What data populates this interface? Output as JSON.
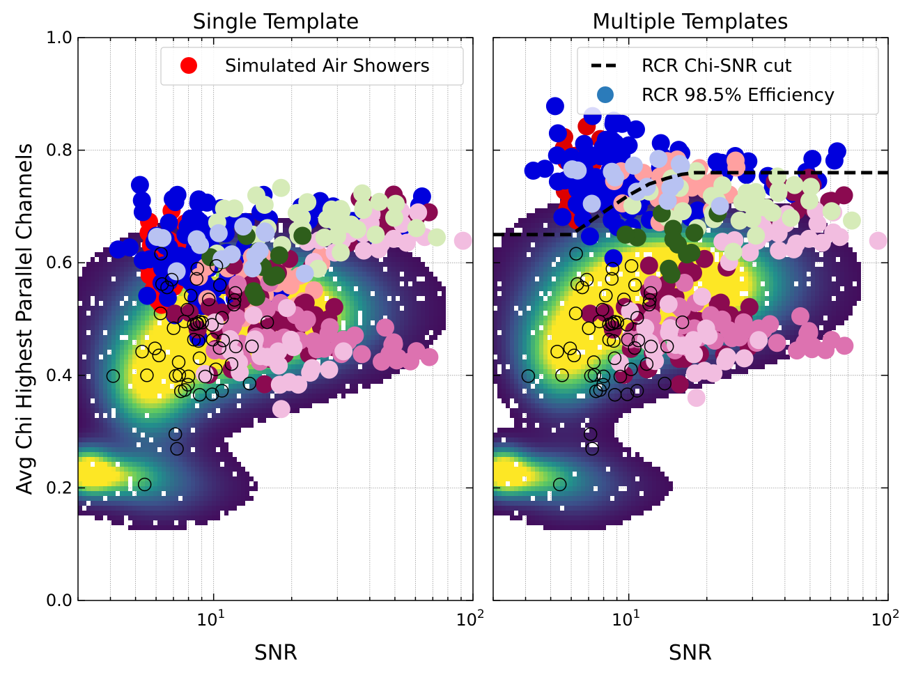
{
  "figure": {
    "ylabel": "Avg Chi Highest Parallel Channels"
  },
  "chart_data": [
    {
      "type": "scatter",
      "title": "Single Template",
      "xlabel": "SNR",
      "ylabel": "Avg Chi Highest Parallel Channels",
      "xscale": "log",
      "xlim": [
        3,
        100
      ],
      "ylim": [
        0.0,
        1.0
      ],
      "xticks": [
        {
          "value": 10,
          "label": "10^1"
        },
        {
          "value": 100,
          "label": "10^2"
        }
      ],
      "yticks": [
        {
          "value": 0.0,
          "label": "0.0"
        },
        {
          "value": 0.2,
          "label": "0.2"
        },
        {
          "value": 0.4,
          "label": "0.4"
        },
        {
          "value": 0.6,
          "label": "0.6"
        },
        {
          "value": 0.8,
          "label": "0.8"
        },
        {
          "value": 1.0,
          "label": "1.0"
        }
      ],
      "grid": true,
      "legend": {
        "position": "upper right",
        "entries": [
          {
            "label": "Simulated Air Showers",
            "color": "#ff0000",
            "marker": "circle"
          }
        ]
      },
      "background_density": {
        "colormap": "viridis",
        "blobs": [
          {
            "x": 3.2,
            "y": 0.23,
            "sx": 0.07,
            "sy": 0.03,
            "w": 1.0
          },
          {
            "x": 4.3,
            "y": 0.22,
            "sx": 0.1,
            "sy": 0.025,
            "w": 0.55
          },
          {
            "x": 6.0,
            "y": 0.21,
            "sx": 0.15,
            "sy": 0.05,
            "w": 0.3
          },
          {
            "x": 8.0,
            "y": 0.2,
            "sx": 0.25,
            "sy": 0.04,
            "w": 0.12
          },
          {
            "x": 5.5,
            "y": 0.37,
            "sx": 0.12,
            "sy": 0.06,
            "w": 0.7
          },
          {
            "x": 7.5,
            "y": 0.44,
            "sx": 0.2,
            "sy": 0.07,
            "w": 0.6
          },
          {
            "x": 12.0,
            "y": 0.49,
            "sx": 0.25,
            "sy": 0.07,
            "w": 0.7
          },
          {
            "x": 17.0,
            "y": 0.51,
            "sx": 0.2,
            "sy": 0.05,
            "w": 0.9
          },
          {
            "x": 25.0,
            "y": 0.52,
            "sx": 0.3,
            "sy": 0.08,
            "w": 0.3
          },
          {
            "x": 10.0,
            "y": 0.58,
            "sx": 0.3,
            "sy": 0.06,
            "w": 0.2
          }
        ]
      },
      "series": [
        {
          "name": "Simulated Air Showers",
          "color": "#ff0000",
          "size": 13
        },
        {
          "color": "#0000dd",
          "size": 13
        },
        {
          "color": "#ffa0a0",
          "size": 13
        },
        {
          "color": "#8b0a50",
          "size": 13
        },
        {
          "color": "#dd72b0",
          "size": 13
        },
        {
          "color": "#f2bde0",
          "size": 13
        },
        {
          "color": "#d6ebb8",
          "size": 13
        },
        {
          "color": "#2e5e1b",
          "size": 13
        },
        {
          "color": "#b8c2f2",
          "size": 13
        },
        {
          "color": "#000000",
          "size": 9,
          "hollow": true
        }
      ]
    },
    {
      "type": "scatter",
      "title": "Multiple Templates",
      "xlabel": "SNR",
      "xscale": "log",
      "xlim": [
        3,
        100
      ],
      "ylim": [
        0.0,
        1.0
      ],
      "xticks": [
        {
          "value": 10,
          "label": "10^1"
        },
        {
          "value": 100,
          "label": "10^2"
        }
      ],
      "yticks": [
        {
          "value": 0.0
        },
        {
          "value": 0.2
        },
        {
          "value": 0.4
        },
        {
          "value": 0.6
        },
        {
          "value": 0.8
        },
        {
          "value": 1.0
        }
      ],
      "grid": true,
      "legend": {
        "position": "upper right",
        "entries": [
          {
            "label": "RCR Chi-SNR cut",
            "color": "#000000",
            "marker": "dashed-line"
          },
          {
            "label": "RCR 98.5% Efficiency",
            "color": "#2b7bba",
            "marker": "circle"
          }
        ]
      },
      "cut_line": {
        "name": "RCR Chi-SNR cut",
        "x": [
          3,
          6,
          8,
          10,
          12,
          14,
          16,
          18,
          25,
          40,
          100
        ],
        "y": [
          0.65,
          0.65,
          0.69,
          0.72,
          0.74,
          0.75,
          0.757,
          0.76,
          0.76,
          0.76,
          0.76
        ]
      },
      "series": [
        {
          "color": "#dd0000",
          "size": 13
        },
        {
          "color": "#0000dd",
          "size": 13
        },
        {
          "color": "#ffa0a0",
          "size": 13
        },
        {
          "color": "#8b0a50",
          "size": 13
        },
        {
          "color": "#dd72b0",
          "size": 13
        },
        {
          "color": "#f2bde0",
          "size": 13
        },
        {
          "color": "#d6ebb8",
          "size": 13
        },
        {
          "color": "#2e5e1b",
          "size": 13
        },
        {
          "color": "#b8c2f2",
          "size": 13
        },
        {
          "color": "#000000",
          "size": 9,
          "hollow": true
        }
      ]
    }
  ]
}
